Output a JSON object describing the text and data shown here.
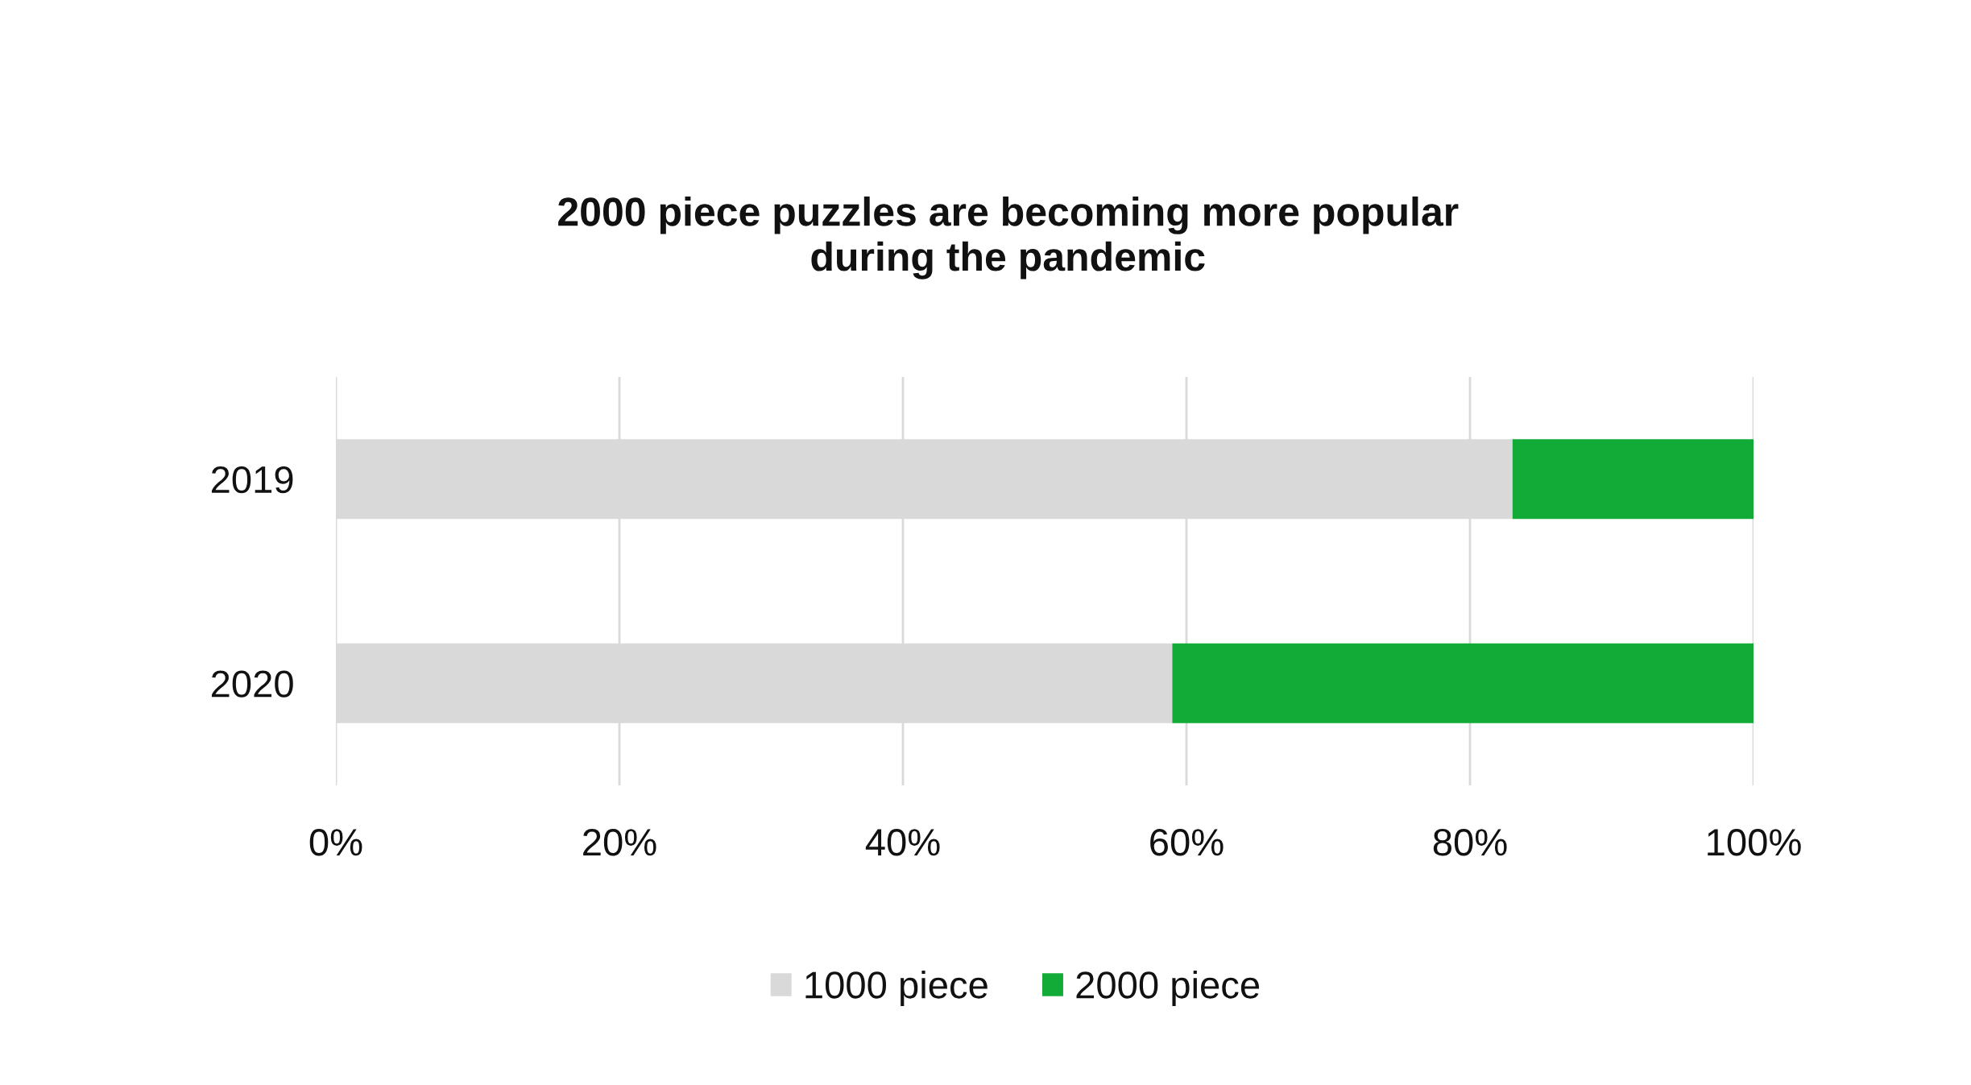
{
  "chart_data": {
    "type": "bar",
    "orientation": "horizontal",
    "stacked": true,
    "title": "2000 piece puzzles are becoming more popular\nduring the pandemic",
    "categories": [
      "2019",
      "2020"
    ],
    "series": [
      {
        "name": "1000 piece",
        "color": "#d9d9d9",
        "values": [
          83,
          59
        ]
      },
      {
        "name": "2000 piece",
        "color": "#13ab38",
        "values": [
          17,
          41
        ]
      }
    ],
    "xlim": [
      0,
      100
    ],
    "xticks": [
      {
        "value": 0,
        "label": "0%"
      },
      {
        "value": 20,
        "label": "20%"
      },
      {
        "value": 40,
        "label": "40%"
      },
      {
        "value": 60,
        "label": "60%"
      },
      {
        "value": 80,
        "label": "80%"
      },
      {
        "value": 100,
        "label": "100%"
      }
    ],
    "grid": "x",
    "legend": "bottom"
  }
}
